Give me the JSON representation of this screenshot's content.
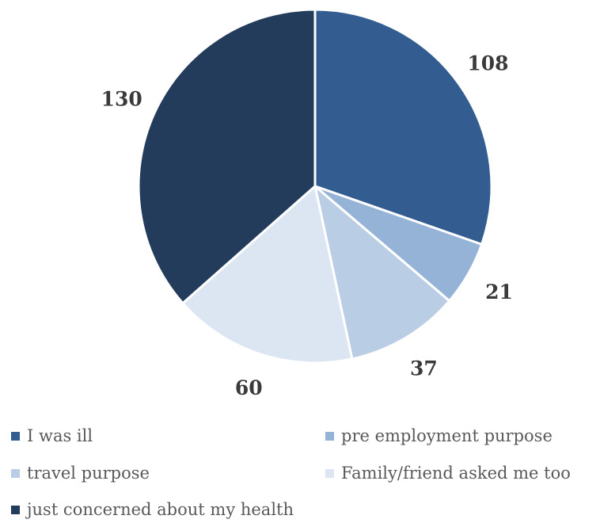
{
  "chart_data": {
    "type": "pie",
    "categories": [
      "I was ill",
      "pre employment purpose",
      "travel purpose",
      "Family/friend asked me too",
      "just concerned about my health"
    ],
    "values": [
      108,
      21,
      37,
      60,
      130
    ],
    "data_labels": [
      "108",
      "21",
      "37",
      "60",
      "130"
    ],
    "colors": [
      "#335c90",
      "#95b3d7",
      "#b9cde5",
      "#dce6f2",
      "#243c5c"
    ],
    "start_angle_deg": 0,
    "direction": "clockwise",
    "legend_position": "bottom"
  }
}
